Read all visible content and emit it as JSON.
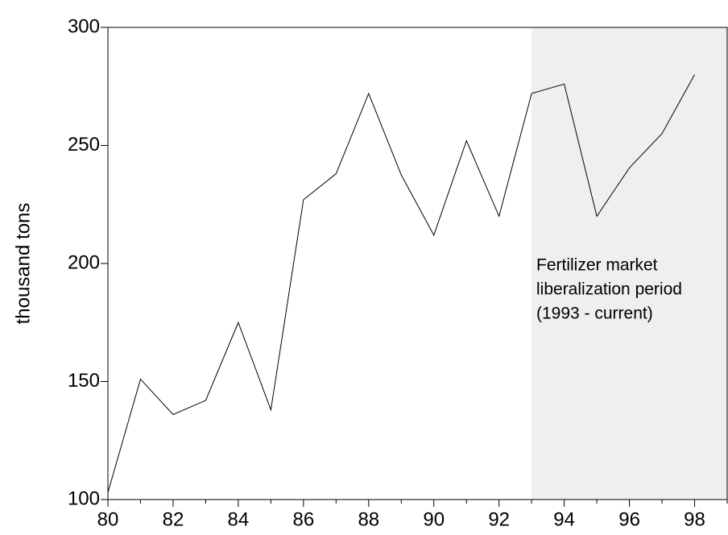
{
  "chart_data": {
    "type": "line",
    "y_label": "thousand tons",
    "x": [
      80,
      81,
      82,
      83,
      84,
      85,
      86,
      87,
      88,
      89,
      90,
      91,
      92,
      93,
      94,
      95,
      96,
      97,
      98
    ],
    "series": [
      {
        "color": "#000000",
        "values": [
          103,
          151,
          136,
          142,
          175,
          138,
          227,
          238,
          272,
          237.5,
          212,
          252,
          220,
          272,
          276,
          220,
          240.5,
          255,
          280
        ]
      }
    ],
    "xlim": [
      80,
      99
    ],
    "xticks": [
      80,
      82,
      84,
      86,
      88,
      90,
      92,
      94,
      96,
      98
    ],
    "xminorticks": [
      81,
      83,
      85,
      87,
      89,
      91,
      93,
      95,
      97,
      99
    ],
    "ylim": [
      100,
      300
    ],
    "yticks": [
      100,
      150,
      200,
      250,
      300
    ],
    "shaded_region": {
      "x": [
        93,
        99
      ],
      "color": "#efefef"
    },
    "annotation": [
      "Fertilizer market",
      "liberalization period",
      "(1993 - current)"
    ]
  }
}
